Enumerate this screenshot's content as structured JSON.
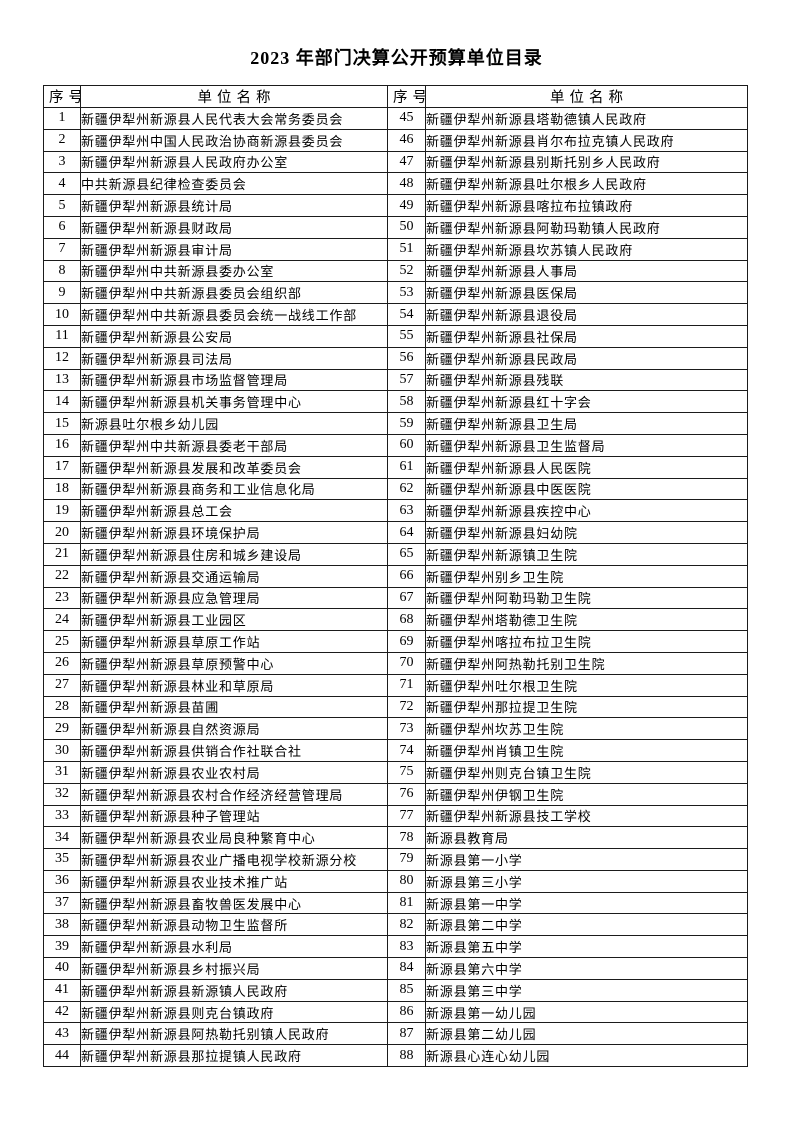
{
  "title": "2023 年部门决算公开预算单位目录",
  "table": {
    "headers": [
      "序号",
      "单位名称",
      "序号",
      "单位名称"
    ],
    "left": [
      {
        "no": "1",
        "name": "新疆伊犁州新源县人民代表大会常务委员会"
      },
      {
        "no": "2",
        "name": "新疆伊犁州中国人民政治协商新源县委员会"
      },
      {
        "no": "3",
        "name": "新疆伊犁州新源县人民政府办公室"
      },
      {
        "no": "4",
        "name": "中共新源县纪律检查委员会"
      },
      {
        "no": "5",
        "name": "新疆伊犁州新源县统计局"
      },
      {
        "no": "6",
        "name": "新疆伊犁州新源县财政局"
      },
      {
        "no": "7",
        "name": "新疆伊犁州新源县审计局"
      },
      {
        "no": "8",
        "name": "新疆伊犁州中共新源县委办公室"
      },
      {
        "no": "9",
        "name": "新疆伊犁州中共新源县委员会组织部"
      },
      {
        "no": "10",
        "name": "新疆伊犁州中共新源县委员会统一战线工作部"
      },
      {
        "no": "11",
        "name": "新疆伊犁州新源县公安局"
      },
      {
        "no": "12",
        "name": "新疆伊犁州新源县司法局"
      },
      {
        "no": "13",
        "name": "新疆伊犁州新源县市场监督管理局"
      },
      {
        "no": "14",
        "name": "新疆伊犁州新源县机关事务管理中心"
      },
      {
        "no": "15",
        "name": "新源县吐尔根乡幼儿园"
      },
      {
        "no": "16",
        "name": "新疆伊犁州中共新源县委老干部局"
      },
      {
        "no": "17",
        "name": "新疆伊犁州新源县发展和改革委员会"
      },
      {
        "no": "18",
        "name": "新疆伊犁州新源县商务和工业信息化局"
      },
      {
        "no": "19",
        "name": "新疆伊犁州新源县总工会"
      },
      {
        "no": "20",
        "name": "新疆伊犁州新源县环境保护局"
      },
      {
        "no": "21",
        "name": "新疆伊犁州新源县住房和城乡建设局"
      },
      {
        "no": "22",
        "name": "新疆伊犁州新源县交通运输局"
      },
      {
        "no": "23",
        "name": "新疆伊犁州新源县应急管理局"
      },
      {
        "no": "24",
        "name": "新疆伊犁州新源县工业园区"
      },
      {
        "no": "25",
        "name": "新疆伊犁州新源县草原工作站"
      },
      {
        "no": "26",
        "name": "新疆伊犁州新源县草原预警中心"
      },
      {
        "no": "27",
        "name": "新疆伊犁州新源县林业和草原局"
      },
      {
        "no": "28",
        "name": "新疆伊犁州新源县苗圃"
      },
      {
        "no": "29",
        "name": "新疆伊犁州新源县自然资源局"
      },
      {
        "no": "30",
        "name": "新疆伊犁州新源县供销合作社联合社"
      },
      {
        "no": "31",
        "name": "新疆伊犁州新源县农业农村局"
      },
      {
        "no": "32",
        "name": "新疆伊犁州新源县农村合作经济经营管理局"
      },
      {
        "no": "33",
        "name": "新疆伊犁州新源县种子管理站"
      },
      {
        "no": "34",
        "name": "新疆伊犁州新源县农业局良种繁育中心"
      },
      {
        "no": "35",
        "name": "新疆伊犁州新源县农业广播电视学校新源分校"
      },
      {
        "no": "36",
        "name": "新疆伊犁州新源县农业技术推广站"
      },
      {
        "no": "37",
        "name": "新疆伊犁州新源县畜牧兽医发展中心"
      },
      {
        "no": "38",
        "name": "新疆伊犁州新源县动物卫生监督所"
      },
      {
        "no": "39",
        "name": "新疆伊犁州新源县水利局"
      },
      {
        "no": "40",
        "name": "新疆伊犁州新源县乡村振兴局"
      },
      {
        "no": "41",
        "name": "新疆伊犁州新源县新源镇人民政府"
      },
      {
        "no": "42",
        "name": "新疆伊犁州新源县则克台镇政府"
      },
      {
        "no": "43",
        "name": "新疆伊犁州新源县阿热勒托别镇人民政府"
      },
      {
        "no": "44",
        "name": "新疆伊犁州新源县那拉提镇人民政府"
      }
    ],
    "right": [
      {
        "no": "45",
        "name": "新疆伊犁州新源县塔勒德镇人民政府"
      },
      {
        "no": "46",
        "name": "新疆伊犁州新源县肖尔布拉克镇人民政府"
      },
      {
        "no": "47",
        "name": "新疆伊犁州新源县别斯托别乡人民政府"
      },
      {
        "no": "48",
        "name": "新疆伊犁州新源县吐尔根乡人民政府"
      },
      {
        "no": "49",
        "name": "新疆伊犁州新源县喀拉布拉镇政府"
      },
      {
        "no": "50",
        "name": "新疆伊犁州新源县阿勒玛勒镇人民政府"
      },
      {
        "no": "51",
        "name": "新疆伊犁州新源县坎苏镇人民政府"
      },
      {
        "no": "52",
        "name": "新疆伊犁州新源县人事局"
      },
      {
        "no": "53",
        "name": "新疆伊犁州新源县医保局"
      },
      {
        "no": "54",
        "name": "新疆伊犁州新源县退役局"
      },
      {
        "no": "55",
        "name": "新疆伊犁州新源县社保局"
      },
      {
        "no": "56",
        "name": "新疆伊犁州新源县民政局"
      },
      {
        "no": "57",
        "name": "新疆伊犁州新源县残联"
      },
      {
        "no": "58",
        "name": "新疆伊犁州新源县红十字会"
      },
      {
        "no": "59",
        "name": "新疆伊犁州新源县卫生局"
      },
      {
        "no": "60",
        "name": "新疆伊犁州新源县卫生监督局"
      },
      {
        "no": "61",
        "name": "新疆伊犁州新源县人民医院"
      },
      {
        "no": "62",
        "name": "新疆伊犁州新源县中医医院"
      },
      {
        "no": "63",
        "name": "新疆伊犁州新源县疾控中心"
      },
      {
        "no": "64",
        "name": "新疆伊犁州新源县妇幼院"
      },
      {
        "no": "65",
        "name": "新疆伊犁州新源镇卫生院"
      },
      {
        "no": "66",
        "name": "新疆伊犁州别乡卫生院"
      },
      {
        "no": "67",
        "name": "新疆伊犁州阿勒玛勒卫生院"
      },
      {
        "no": "68",
        "name": "新疆伊犁州塔勒德卫生院"
      },
      {
        "no": "69",
        "name": "新疆伊犁州喀拉布拉卫生院"
      },
      {
        "no": "70",
        "name": "新疆伊犁州阿热勒托别卫生院"
      },
      {
        "no": "71",
        "name": "新疆伊犁州吐尔根卫生院"
      },
      {
        "no": "72",
        "name": "新疆伊犁州那拉提卫生院"
      },
      {
        "no": "73",
        "name": "新疆伊犁州坎苏卫生院"
      },
      {
        "no": "74",
        "name": "新疆伊犁州肖镇卫生院"
      },
      {
        "no": "75",
        "name": "新疆伊犁州则克台镇卫生院"
      },
      {
        "no": "76",
        "name": "新疆伊犁州伊钢卫生院"
      },
      {
        "no": "77",
        "name": "新疆伊犁州新源县技工学校"
      },
      {
        "no": "78",
        "name": "新源县教育局"
      },
      {
        "no": "79",
        "name": "新源县第一小学"
      },
      {
        "no": "80",
        "name": "新源县第三小学"
      },
      {
        "no": "81",
        "name": "新源县第一中学"
      },
      {
        "no": "82",
        "name": "新源县第二中学"
      },
      {
        "no": "83",
        "name": "新源县第五中学"
      },
      {
        "no": "84",
        "name": "新源县第六中学"
      },
      {
        "no": "85",
        "name": "新源县第三中学"
      },
      {
        "no": "86",
        "name": "新源县第一幼儿园"
      },
      {
        "no": "87",
        "name": "新源县第二幼儿园"
      },
      {
        "no": "88",
        "name": "新源县心连心幼儿园"
      }
    ]
  }
}
